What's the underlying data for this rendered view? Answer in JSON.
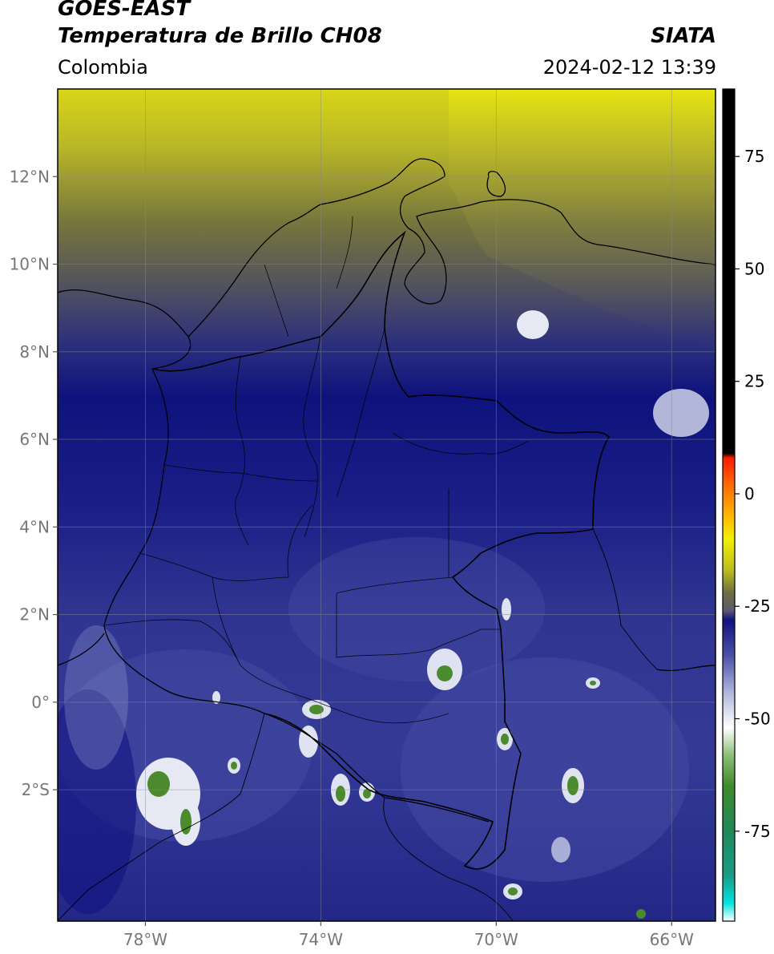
{
  "header": {
    "satellite": "GOES-EAST",
    "product": "Temperatura de Brillo CH08",
    "region": "Colombia",
    "agency": "SIATA",
    "datetime": "2024-02-12 13:39"
  },
  "map": {
    "lon_range": [
      -80,
      -65
    ],
    "lat_range": [
      -5,
      14
    ],
    "lon_ticks": [
      {
        "value": -78,
        "label": "78°W"
      },
      {
        "value": -74,
        "label": "74°W"
      },
      {
        "value": -70,
        "label": "70°W"
      },
      {
        "value": -66,
        "label": "66°W"
      }
    ],
    "lat_ticks": [
      {
        "value": 12,
        "label": "12°N"
      },
      {
        "value": 10,
        "label": "10°N"
      },
      {
        "value": 8,
        "label": "8°N"
      },
      {
        "value": 6,
        "label": "6°N"
      },
      {
        "value": 4,
        "label": "4°N"
      },
      {
        "value": 2,
        "label": "2°N"
      },
      {
        "value": 0,
        "label": "0°"
      },
      {
        "value": -2,
        "label": "2°S"
      }
    ]
  },
  "colorbar": {
    "range": [
      -95,
      90
    ],
    "ticks": [
      {
        "value": 75,
        "label": "75"
      },
      {
        "value": 50,
        "label": "50"
      },
      {
        "value": 25,
        "label": "25"
      },
      {
        "value": 0,
        "label": "0"
      },
      {
        "value": -25,
        "label": "-25"
      },
      {
        "value": -50,
        "label": "-50"
      },
      {
        "value": -75,
        "label": "-75"
      }
    ],
    "stops": [
      {
        "value": -95,
        "color": "#ffffff"
      },
      {
        "value": -91,
        "color": "#00e5e0"
      },
      {
        "value": -85,
        "color": "#1a9c88"
      },
      {
        "value": -75,
        "color": "#1f8a5a"
      },
      {
        "value": -65,
        "color": "#3f8a2a"
      },
      {
        "value": -58,
        "color": "#8fbf7a"
      },
      {
        "value": -52,
        "color": "#ffffff"
      },
      {
        "value": -44,
        "color": "#aeb4dc"
      },
      {
        "value": -36,
        "color": "#4a52a8"
      },
      {
        "value": -28,
        "color": "#10127e"
      },
      {
        "value": -26,
        "color": "#5a5a70"
      },
      {
        "value": -22,
        "color": "#6e6e40"
      },
      {
        "value": -17,
        "color": "#bcbc20"
      },
      {
        "value": -10,
        "color": "#f2f000"
      },
      {
        "value": -5,
        "color": "#ffb800"
      },
      {
        "value": 2,
        "color": "#ff6a00"
      },
      {
        "value": 8,
        "color": "#ff1a00"
      },
      {
        "value": 9,
        "color": "#000000"
      },
      {
        "value": 90,
        "color": "#000000"
      }
    ]
  }
}
